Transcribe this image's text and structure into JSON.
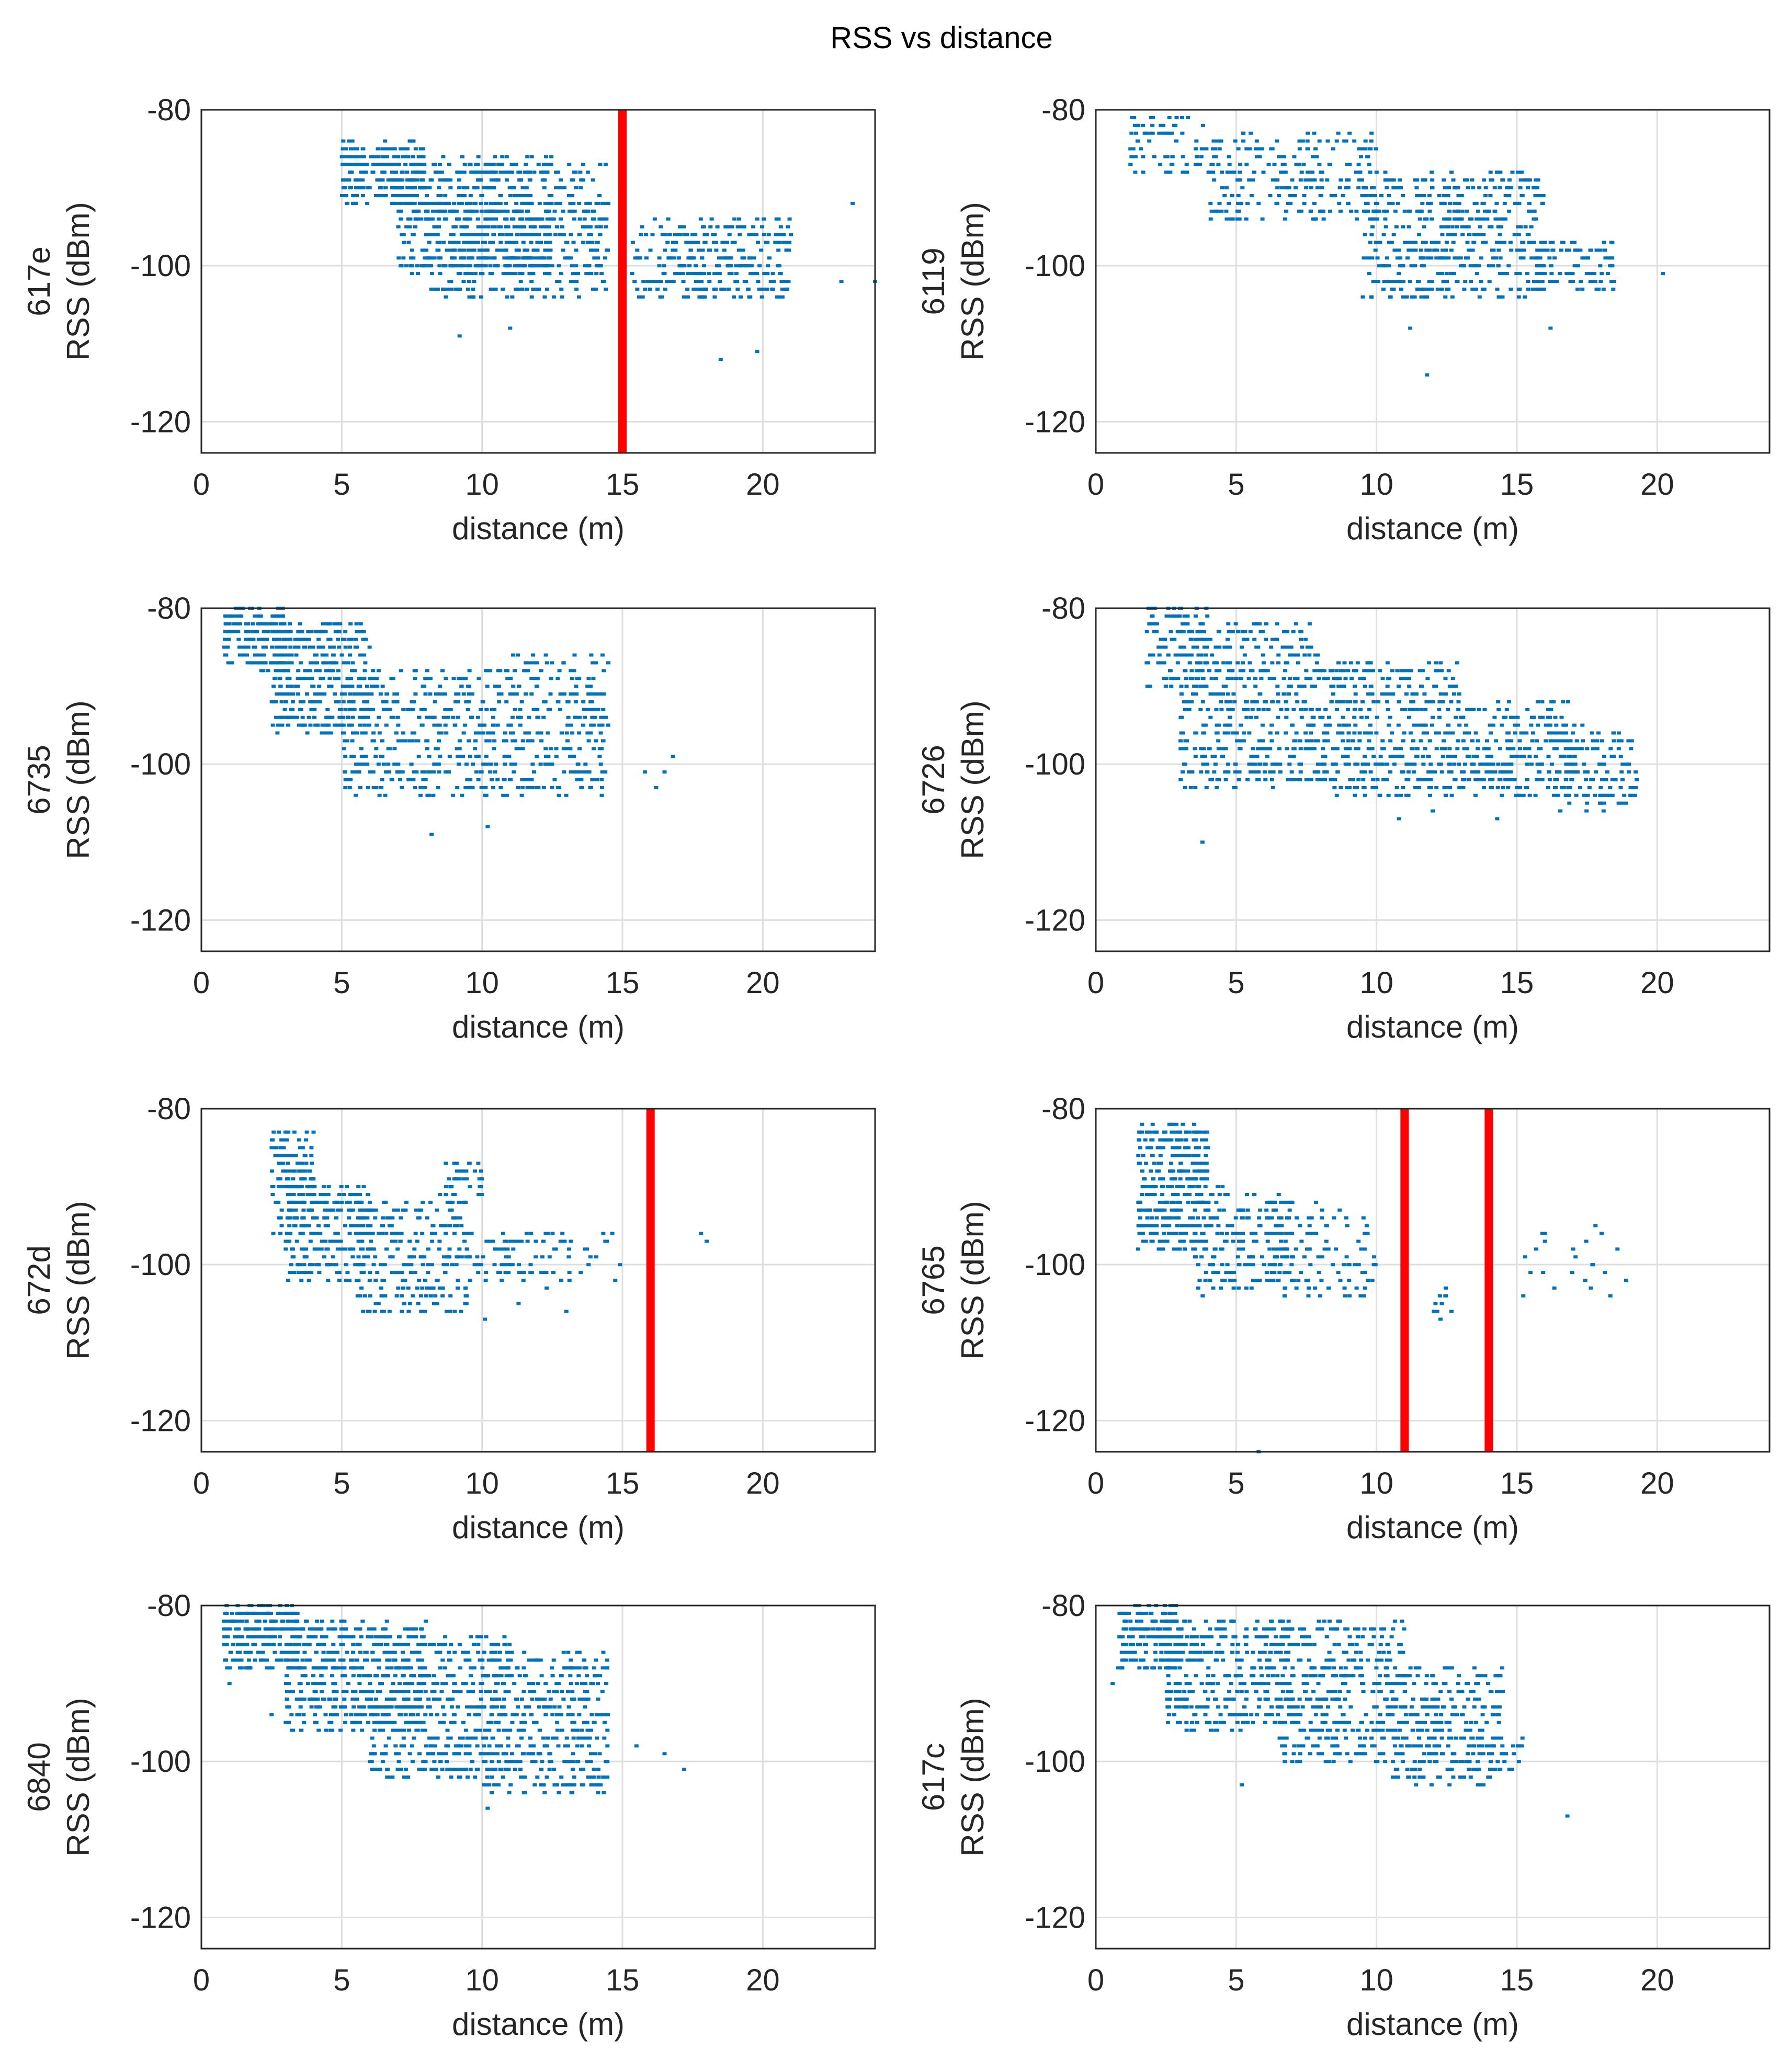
{
  "figure_title": "RSS vs distance",
  "colors": {
    "points": "#0072BD",
    "marker": "#FF0000",
    "grid": "#DEDEDE",
    "axes": "#262626"
  },
  "chart_data": [
    {
      "type": "scatter",
      "title": "617e",
      "xlabel": "distance (m)",
      "ylabel": "RSS (dBm)",
      "xlim": [
        0,
        24
      ],
      "ylim": [
        -124,
        -80
      ],
      "xticks": [
        0,
        5,
        10,
        15,
        20
      ],
      "yticks": [
        -80,
        -100,
        -120
      ],
      "markers": [
        15
      ],
      "clusters": [
        {
          "x": [
            5,
            8
          ],
          "y": [
            -92,
            -84
          ],
          "n": 260
        },
        {
          "x": [
            7,
            12.5
          ],
          "y": [
            -101,
            -86
          ],
          "n": 520
        },
        {
          "x": [
            8,
            14.5
          ],
          "y": [
            -104,
            -92
          ],
          "n": 300
        },
        {
          "x": [
            12.5,
            14.5
          ],
          "y": [
            -98,
            -87
          ],
          "n": 60
        },
        {
          "x": [
            15.3,
            18
          ],
          "y": [
            -104,
            -94
          ],
          "n": 90
        },
        {
          "x": [
            17,
            21
          ],
          "y": [
            -104,
            -94
          ],
          "n": 210
        }
      ],
      "points": [
        [
          9.2,
          -109
        ],
        [
          11,
          -108
        ],
        [
          18.5,
          -112
        ],
        [
          19.8,
          -111
        ],
        [
          22.8,
          -102
        ],
        [
          24,
          -102
        ],
        [
          23.2,
          -92
        ]
      ]
    },
    {
      "type": "scatter",
      "title": "6119",
      "xlabel": "distance (m)",
      "ylabel": "RSS (dBm)",
      "xlim": [
        0,
        24
      ],
      "ylim": [
        -124,
        -80
      ],
      "xticks": [
        0,
        5,
        10,
        15,
        20
      ],
      "yticks": [
        -80,
        -100,
        -120
      ],
      "markers": [],
      "clusters": [
        {
          "x": [
            1.2,
            4
          ],
          "y": [
            -88,
            -80
          ],
          "n": 70
        },
        {
          "x": [
            4,
            10
          ],
          "y": [
            -94,
            -83
          ],
          "n": 230
        },
        {
          "x": [
            9.5,
            12.5
          ],
          "y": [
            -104,
            -88
          ],
          "n": 220
        },
        {
          "x": [
            12.5,
            16
          ],
          "y": [
            -104,
            -88
          ],
          "n": 250
        },
        {
          "x": [
            15.5,
            18.5
          ],
          "y": [
            -103,
            -97
          ],
          "n": 90
        }
      ],
      "points": [
        [
          11.8,
          -114
        ],
        [
          11.2,
          -108
        ],
        [
          16.2,
          -108
        ],
        [
          20.2,
          -101
        ],
        [
          7.3,
          -89
        ]
      ]
    },
    {
      "type": "scatter",
      "title": "6735",
      "xlabel": "distance (m)",
      "ylabel": "RSS (dBm)",
      "xlim": [
        0,
        24
      ],
      "ylim": [
        -124,
        -80
      ],
      "xticks": [
        0,
        5,
        10,
        15,
        20
      ],
      "yticks": [
        -80,
        -100,
        -120
      ],
      "markers": [],
      "clusters": [
        {
          "x": [
            0.8,
            3
          ],
          "y": [
            -88,
            -80
          ],
          "n": 180
        },
        {
          "x": [
            2.5,
            6
          ],
          "y": [
            -96,
            -82
          ],
          "n": 330
        },
        {
          "x": [
            5,
            10
          ],
          "y": [
            -104,
            -88
          ],
          "n": 330
        },
        {
          "x": [
            10,
            14.5
          ],
          "y": [
            -104,
            -86
          ],
          "n": 300
        }
      ],
      "points": [
        [
          8.2,
          -109
        ],
        [
          10.2,
          -108
        ],
        [
          16.8,
          -99
        ],
        [
          16.5,
          -101
        ],
        [
          15.8,
          -101
        ],
        [
          16.2,
          -103
        ]
      ]
    },
    {
      "type": "scatter",
      "title": "6726",
      "xlabel": "distance (m)",
      "ylabel": "RSS (dBm)",
      "xlim": [
        0,
        24
      ],
      "ylim": [
        -124,
        -80
      ],
      "xticks": [
        0,
        5,
        10,
        15,
        20
      ],
      "yticks": [
        -80,
        -100,
        -120
      ],
      "markers": [],
      "clusters": [
        {
          "x": [
            1.8,
            4
          ],
          "y": [
            -90,
            -80
          ],
          "n": 100
        },
        {
          "x": [
            3,
            8
          ],
          "y": [
            -103,
            -82
          ],
          "n": 460
        },
        {
          "x": [
            8,
            13
          ],
          "y": [
            -104,
            -87
          ],
          "n": 400
        },
        {
          "x": [
            13,
            17
          ],
          "y": [
            -104,
            -92
          ],
          "n": 250
        },
        {
          "x": [
            16.5,
            19.3
          ],
          "y": [
            -106,
            -95
          ],
          "n": 110
        }
      ],
      "points": [
        [
          3.8,
          -110
        ],
        [
          10.8,
          -107
        ],
        [
          12,
          -106
        ],
        [
          14.3,
          -107
        ]
      ]
    },
    {
      "type": "scatter",
      "title": "672d",
      "xlabel": "distance (m)",
      "ylabel": "RSS (dBm)",
      "xlim": [
        0,
        24
      ],
      "ylim": [
        -124,
        -80
      ],
      "xticks": [
        0,
        5,
        10,
        15,
        20
      ],
      "yticks": [
        -80,
        -100,
        -120
      ],
      "markers": [
        16
      ],
      "clusters": [
        {
          "x": [
            2.5,
            4
          ],
          "y": [
            -96,
            -83
          ],
          "n": 140
        },
        {
          "x": [
            3,
            6
          ],
          "y": [
            -102,
            -90
          ],
          "n": 220
        },
        {
          "x": [
            5.5,
            9.5
          ],
          "y": [
            -106,
            -92
          ],
          "n": 240
        },
        {
          "x": [
            8.5,
            10
          ],
          "y": [
            -92,
            -87
          ],
          "n": 40
        },
        {
          "x": [
            9.5,
            12.5
          ],
          "y": [
            -102,
            -96
          ],
          "n": 70
        },
        {
          "x": [
            12.5,
            15
          ],
          "y": [
            -102,
            -96
          ],
          "n": 25
        }
      ],
      "points": [
        [
          18,
          -97
        ],
        [
          17.8,
          -96
        ],
        [
          11.3,
          -105
        ],
        [
          12.3,
          -103
        ],
        [
          13,
          -106
        ],
        [
          10.1,
          -107
        ]
      ]
    },
    {
      "type": "scatter",
      "title": "6765",
      "xlabel": "distance (m)",
      "ylabel": "RSS (dBm)",
      "xlim": [
        0,
        24
      ],
      "ylim": [
        -124,
        -80
      ],
      "xticks": [
        0,
        5,
        10,
        15,
        20
      ],
      "yticks": [
        -80,
        -100,
        -120
      ],
      "markers": [
        11,
        14
      ],
      "clusters": [
        {
          "x": [
            1.5,
            4
          ],
          "y": [
            -98,
            -82
          ],
          "n": 330
        },
        {
          "x": [
            3.5,
            7
          ],
          "y": [
            -104,
            -90
          ],
          "n": 200
        },
        {
          "x": [
            6,
            10
          ],
          "y": [
            -104,
            -92
          ],
          "n": 110
        },
        {
          "x": [
            12,
            12.7
          ],
          "y": [
            -107,
            -102
          ],
          "n": 10
        },
        {
          "x": [
            15,
            19
          ],
          "y": [
            -105,
            -96
          ],
          "n": 22
        }
      ],
      "points": [
        [
          5.8,
          -124
        ],
        [
          16,
          -97
        ],
        [
          17.8,
          -95
        ],
        [
          9.5,
          -101
        ]
      ]
    },
    {
      "type": "scatter",
      "title": "6840",
      "xlabel": "distance (m)",
      "ylabel": "RSS (dBm)",
      "xlim": [
        0,
        24
      ],
      "ylim": [
        -124,
        -80
      ],
      "xticks": [
        0,
        5,
        10,
        15,
        20
      ],
      "yticks": [
        -80,
        -100,
        -120
      ],
      "markers": [],
      "clusters": [
        {
          "x": [
            0.8,
            3.5
          ],
          "y": [
            -88,
            -80
          ],
          "n": 220
        },
        {
          "x": [
            3,
            8
          ],
          "y": [
            -96,
            -82
          ],
          "n": 440
        },
        {
          "x": [
            6,
            11
          ],
          "y": [
            -102,
            -84
          ],
          "n": 430
        },
        {
          "x": [
            10,
            14.5
          ],
          "y": [
            -104,
            -86
          ],
          "n": 370
        }
      ],
      "points": [
        [
          1,
          -90
        ],
        [
          2.5,
          -94
        ],
        [
          10.2,
          -106
        ],
        [
          16.5,
          -99
        ],
        [
          17.2,
          -101
        ],
        [
          15.5,
          -98
        ]
      ]
    },
    {
      "type": "scatter",
      "title": "617c",
      "xlabel": "distance (m)",
      "ylabel": "RSS (dBm)",
      "xlim": [
        0,
        24
      ],
      "ylim": [
        -124,
        -80
      ],
      "xticks": [
        0,
        5,
        10,
        15,
        20
      ],
      "yticks": [
        -80,
        -100,
        -120
      ],
      "markers": [],
      "clusters": [
        {
          "x": [
            0.8,
            3
          ],
          "y": [
            -88,
            -80
          ],
          "n": 170
        },
        {
          "x": [
            2.5,
            7
          ],
          "y": [
            -96,
            -82
          ],
          "n": 340
        },
        {
          "x": [
            6.5,
            11
          ],
          "y": [
            -100,
            -82
          ],
          "n": 390
        },
        {
          "x": [
            10.5,
            14.5
          ],
          "y": [
            -103,
            -88
          ],
          "n": 270
        },
        {
          "x": [
            14,
            15.2
          ],
          "y": [
            -102,
            -97
          ],
          "n": 25
        }
      ],
      "points": [
        [
          16.8,
          -107
        ],
        [
          0.6,
          -90
        ],
        [
          5.2,
          -103
        ]
      ]
    }
  ]
}
